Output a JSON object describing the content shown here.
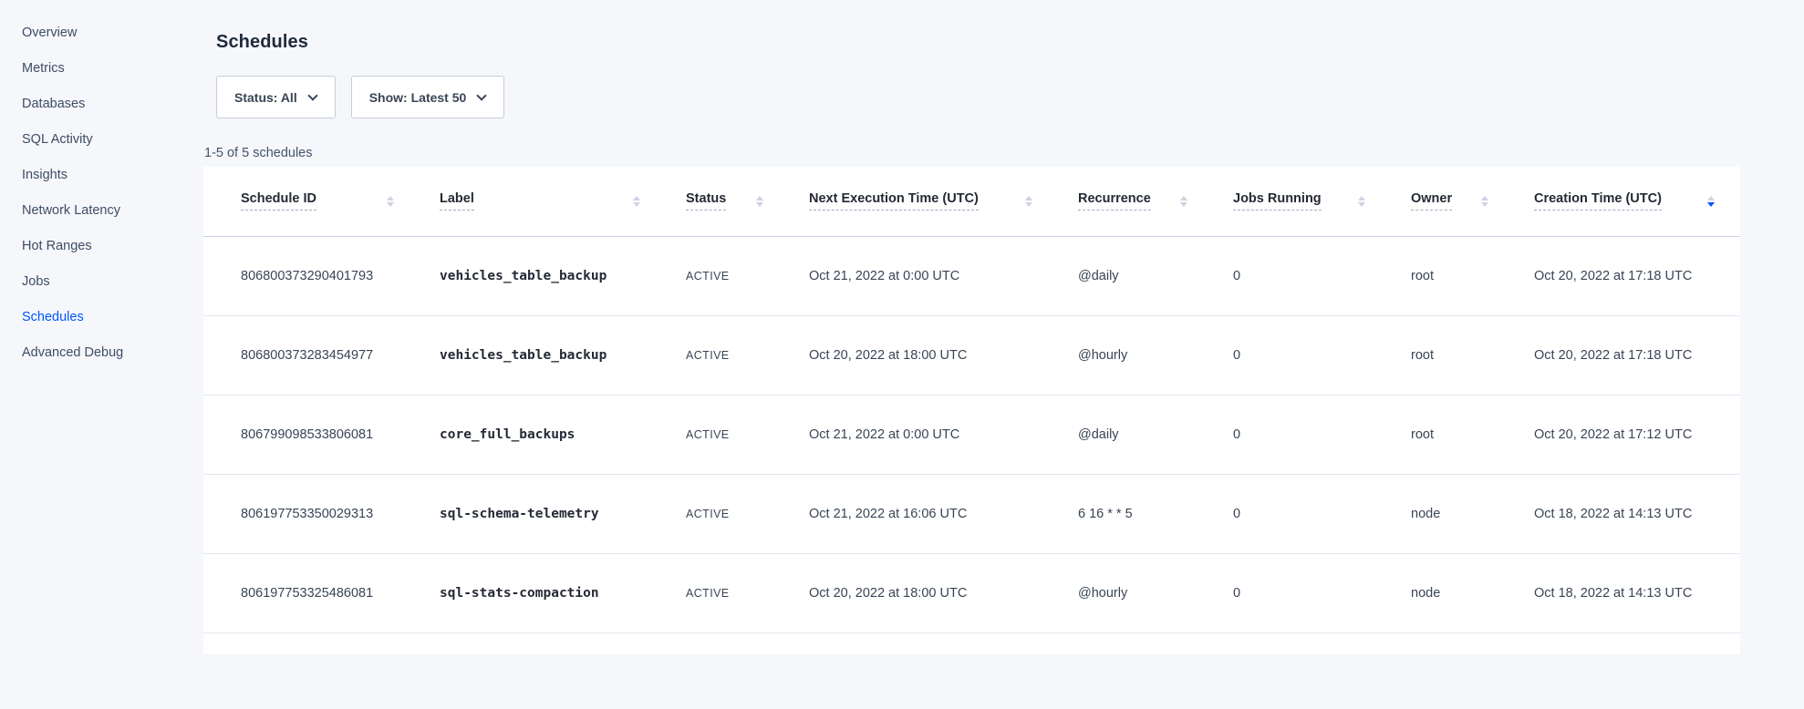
{
  "colors": {
    "accent_blue": "#0055ff",
    "page_background": "#f5f7fa",
    "card_background": "#ffffff"
  },
  "sidebar": {
    "items": [
      {
        "label": "Overview",
        "active": false
      },
      {
        "label": "Metrics",
        "active": false
      },
      {
        "label": "Databases",
        "active": false
      },
      {
        "label": "SQL Activity",
        "active": false
      },
      {
        "label": "Insights",
        "active": false
      },
      {
        "label": "Network Latency",
        "active": false
      },
      {
        "label": "Hot Ranges",
        "active": false
      },
      {
        "label": "Jobs",
        "active": false
      },
      {
        "label": "Schedules",
        "active": true
      },
      {
        "label": "Advanced Debug",
        "active": false
      }
    ]
  },
  "header": {
    "title": "Schedules"
  },
  "filters": {
    "status_dropdown": "Status: All",
    "show_dropdown": "Show: Latest 50"
  },
  "results_summary": "1-5 of 5 schedules",
  "table": {
    "columns": [
      {
        "label": "Schedule ID",
        "sort": "none"
      },
      {
        "label": "Label",
        "sort": "none"
      },
      {
        "label": "Status",
        "sort": "none"
      },
      {
        "label": "Next Execution Time (UTC)",
        "sort": "none"
      },
      {
        "label": "Recurrence",
        "sort": "none"
      },
      {
        "label": "Jobs Running",
        "sort": "none"
      },
      {
        "label": "Owner",
        "sort": "none"
      },
      {
        "label": "Creation Time (UTC)",
        "sort": "desc"
      }
    ],
    "rows": [
      {
        "schedule_id": "806800373290401793",
        "label": "vehicles_table_backup",
        "status": "ACTIVE",
        "next_execution": "Oct 21, 2022 at 0:00 UTC",
        "recurrence": "@daily",
        "jobs_running": "0",
        "owner": "root",
        "creation_time": "Oct 20, 2022 at 17:18 UTC"
      },
      {
        "schedule_id": "806800373283454977",
        "label": "vehicles_table_backup",
        "status": "ACTIVE",
        "next_execution": "Oct 20, 2022 at 18:00 UTC",
        "recurrence": "@hourly",
        "jobs_running": "0",
        "owner": "root",
        "creation_time": "Oct 20, 2022 at 17:18 UTC"
      },
      {
        "schedule_id": "806799098533806081",
        "label": "core_full_backups",
        "status": "ACTIVE",
        "next_execution": "Oct 21, 2022 at 0:00 UTC",
        "recurrence": "@daily",
        "jobs_running": "0",
        "owner": "root",
        "creation_time": "Oct 20, 2022 at 17:12 UTC"
      },
      {
        "schedule_id": "806197753350029313",
        "label": "sql-schema-telemetry",
        "status": "ACTIVE",
        "next_execution": "Oct 21, 2022 at 16:06 UTC",
        "recurrence": "6 16 * * 5",
        "jobs_running": "0",
        "owner": "node",
        "creation_time": "Oct 18, 2022 at 14:13 UTC"
      },
      {
        "schedule_id": "806197753325486081",
        "label": "sql-stats-compaction",
        "status": "ACTIVE",
        "next_execution": "Oct 20, 2022 at 18:00 UTC",
        "recurrence": "@hourly",
        "jobs_running": "0",
        "owner": "node",
        "creation_time": "Oct 18, 2022 at 14:13 UTC"
      }
    ]
  }
}
